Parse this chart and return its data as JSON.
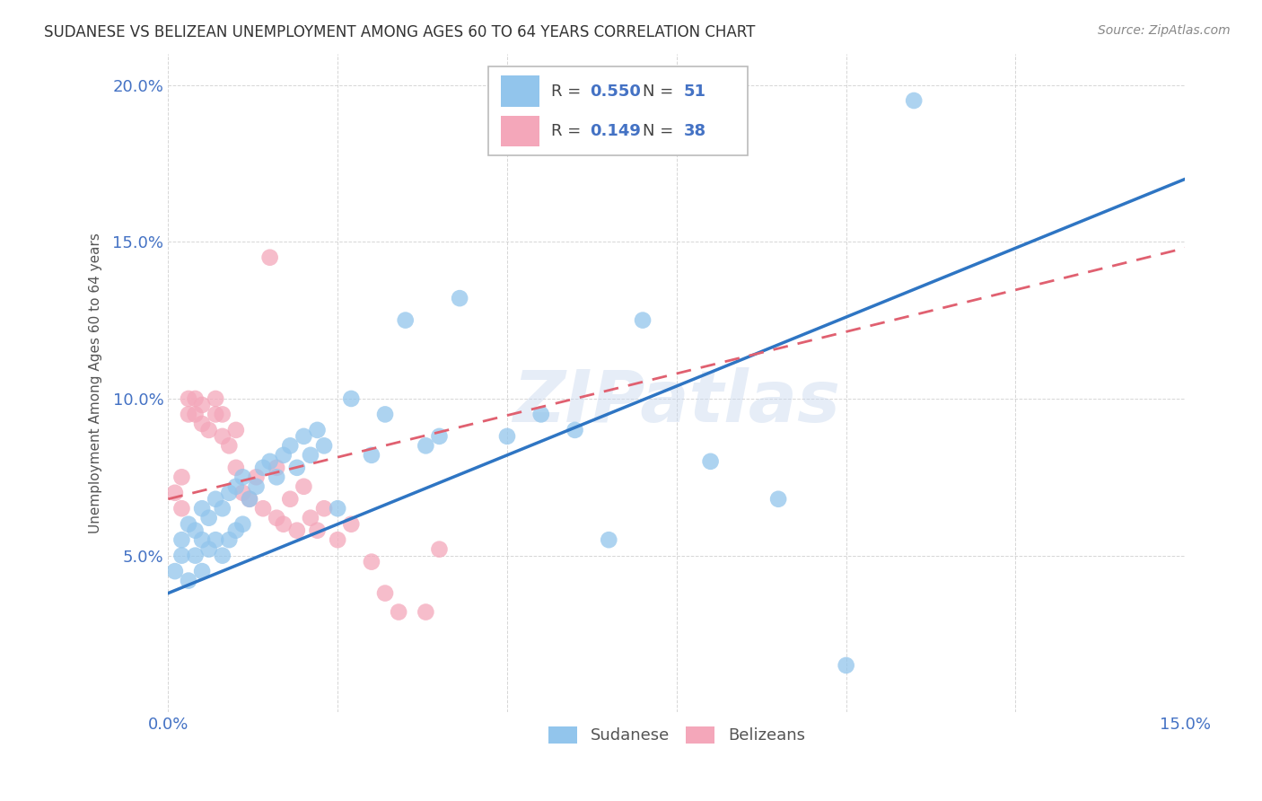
{
  "title": "SUDANESE VS BELIZEAN UNEMPLOYMENT AMONG AGES 60 TO 64 YEARS CORRELATION CHART",
  "source": "Source: ZipAtlas.com",
  "ylabel": "Unemployment Among Ages 60 to 64 years",
  "xlim": [
    0.0,
    0.15
  ],
  "ylim": [
    0.0,
    0.21
  ],
  "blue_color": "#92C5EC",
  "pink_color": "#F4A7BA",
  "blue_line_color": "#2E75C3",
  "pink_line_color": "#E06070",
  "background_color": "#FFFFFF",
  "grid_color": "#CCCCCC",
  "watermark": "ZIPatlas",
  "sudanese_R": 0.55,
  "sudanese_N": 51,
  "belizean_R": 0.149,
  "belizean_N": 38,
  "sudanese_x": [
    0.001,
    0.002,
    0.002,
    0.003,
    0.003,
    0.004,
    0.004,
    0.005,
    0.005,
    0.005,
    0.006,
    0.006,
    0.007,
    0.007,
    0.008,
    0.008,
    0.009,
    0.009,
    0.01,
    0.01,
    0.011,
    0.011,
    0.012,
    0.013,
    0.014,
    0.015,
    0.016,
    0.017,
    0.018,
    0.019,
    0.02,
    0.021,
    0.022,
    0.023,
    0.025,
    0.027,
    0.03,
    0.032,
    0.035,
    0.038,
    0.04,
    0.043,
    0.05,
    0.055,
    0.06,
    0.065,
    0.07,
    0.08,
    0.09,
    0.1,
    0.11
  ],
  "sudanese_y": [
    0.045,
    0.05,
    0.055,
    0.042,
    0.06,
    0.05,
    0.058,
    0.045,
    0.055,
    0.065,
    0.052,
    0.062,
    0.055,
    0.068,
    0.05,
    0.065,
    0.055,
    0.07,
    0.058,
    0.072,
    0.06,
    0.075,
    0.068,
    0.072,
    0.078,
    0.08,
    0.075,
    0.082,
    0.085,
    0.078,
    0.088,
    0.082,
    0.09,
    0.085,
    0.065,
    0.1,
    0.082,
    0.095,
    0.125,
    0.085,
    0.088,
    0.132,
    0.088,
    0.095,
    0.09,
    0.055,
    0.125,
    0.08,
    0.068,
    0.015,
    0.195
  ],
  "belizean_x": [
    0.001,
    0.002,
    0.002,
    0.003,
    0.003,
    0.004,
    0.004,
    0.005,
    0.005,
    0.006,
    0.007,
    0.007,
    0.008,
    0.008,
    0.009,
    0.01,
    0.01,
    0.011,
    0.012,
    0.013,
    0.014,
    0.015,
    0.016,
    0.016,
    0.017,
    0.018,
    0.019,
    0.02,
    0.021,
    0.022,
    0.023,
    0.025,
    0.027,
    0.03,
    0.032,
    0.034,
    0.038,
    0.04
  ],
  "belizean_y": [
    0.07,
    0.065,
    0.075,
    0.095,
    0.1,
    0.095,
    0.1,
    0.092,
    0.098,
    0.09,
    0.095,
    0.1,
    0.088,
    0.095,
    0.085,
    0.078,
    0.09,
    0.07,
    0.068,
    0.075,
    0.065,
    0.145,
    0.062,
    0.078,
    0.06,
    0.068,
    0.058,
    0.072,
    0.062,
    0.058,
    0.065,
    0.055,
    0.06,
    0.048,
    0.038,
    0.032,
    0.032,
    0.052
  ],
  "blue_line_x": [
    0.0,
    0.15
  ],
  "blue_line_y": [
    0.038,
    0.17
  ],
  "pink_line_x": [
    0.0,
    0.15
  ],
  "pink_line_y": [
    0.068,
    0.148
  ]
}
